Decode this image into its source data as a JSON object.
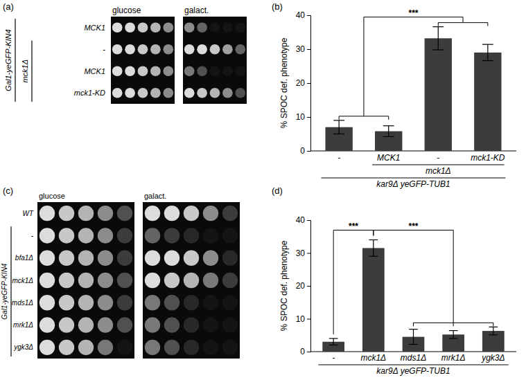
{
  "chart_data": [
    {
      "type": "spot-assay",
      "panel": "(a)",
      "rows": [
        "MCK1",
        "-",
        "MCK1",
        "mck1-KD"
      ],
      "row_groups": [
        {
          "label": "Gal1-yeGFP-KIN4",
          "span": [
            0,
            3
          ]
        },
        {
          "label": "mck1Δ",
          "span": [
            1,
            3
          ]
        }
      ],
      "columns": [
        {
          "label": "glucose",
          "growth": [
            [
              1,
              1,
              0.9,
              0.8,
              0.6
            ],
            [
              1,
              1,
              0.9,
              0.8,
              0.6
            ],
            [
              1,
              1,
              0.9,
              0.8,
              0.6
            ],
            [
              1,
              1,
              0.9,
              0.8,
              0.6
            ]
          ]
        },
        {
          "label": "galact.",
          "growth": [
            [
              0.6,
              0.4,
              0,
              0,
              0
            ],
            [
              1,
              1,
              0.9,
              0.7,
              0.4
            ],
            [
              0.5,
              0.3,
              0,
              0,
              0
            ],
            [
              1,
              0.9,
              0.8,
              0.6,
              0.3
            ]
          ]
        }
      ]
    },
    {
      "type": "bar",
      "panel": "(b)",
      "y_label": "% SPOC def. phenotype",
      "categories": [
        "-",
        "MCK1",
        "-",
        "mck1-KD"
      ],
      "values": [
        7,
        5.8,
        33.2,
        29
      ],
      "errors": [
        2,
        1.6,
        3.4,
        2.4
      ],
      "color": "#3c3c3c",
      "ylim": [
        0,
        40
      ],
      "yticks": [
        0,
        10,
        20,
        30,
        40
      ],
      "groups": [
        {
          "label": "mck1Δ",
          "span": [
            1,
            3
          ]
        }
      ],
      "x_label": "kar9Δ yeGFP-TUB1",
      "significance": [
        {
          "label": "***",
          "left": [
            0,
            1
          ],
          "right": [
            2,
            3
          ]
        }
      ]
    },
    {
      "type": "spot-assay",
      "panel": "(c)",
      "rows": [
        "WT",
        "-",
        "bfa1Δ",
        "mck1Δ",
        "mds1Δ",
        "mrk1Δ",
        "ygk3Δ"
      ],
      "row_groups": [
        {
          "label": "Gal1-yeGFP-KIN4",
          "span": [
            1,
            6
          ]
        }
      ],
      "columns": [
        {
          "label": "glucose",
          "growth": [
            [
              1,
              0.9,
              0.8,
              0.6,
              0.3
            ],
            [
              1,
              0.9,
              0.8,
              0.6,
              0.2
            ],
            [
              1,
              0.9,
              0.8,
              0.6,
              0.2
            ],
            [
              1,
              0.9,
              0.8,
              0.6,
              0.3
            ],
            [
              1,
              0.9,
              0.8,
              0.6,
              0.2
            ],
            [
              1,
              0.9,
              0.8,
              0.6,
              0.3
            ],
            [
              1,
              0.9,
              0.8,
              0.5,
              0
            ]
          ]
        },
        {
          "label": "galact.",
          "growth": [
            [
              1,
              1,
              0.9,
              0.6,
              0.2
            ],
            [
              0.4,
              0.2,
              0.1,
              0,
              0
            ],
            [
              1,
              1,
              0.9,
              0.6,
              0.1
            ],
            [
              1,
              0.9,
              0.8,
              0.5,
              0.2
            ],
            [
              0.5,
              0.3,
              0.1,
              0,
              0
            ],
            [
              0.5,
              0.3,
              0.1,
              0,
              0
            ],
            [
              0.5,
              0.3,
              0.1,
              0,
              0
            ]
          ]
        }
      ]
    },
    {
      "type": "bar",
      "panel": "(d)",
      "y_label": "% SPOC def. phenotype",
      "categories": [
        "-",
        "mck1Δ",
        "mds1Δ",
        "mrk1Δ",
        "ygk3Δ"
      ],
      "values": [
        3,
        31.5,
        4.5,
        5.2,
        6.3
      ],
      "errors": [
        1,
        2.5,
        2.3,
        1.2,
        1.2
      ],
      "color": "#3c3c3c",
      "ylim": [
        0,
        40
      ],
      "yticks": [
        0,
        10,
        20,
        30,
        40
      ],
      "x_label": "kar9Δ yeGFP-TUB1",
      "significance": [
        {
          "label": "***",
          "left": [
            0
          ],
          "right": [
            1
          ]
        },
        {
          "label": "***",
          "left": [
            1
          ],
          "right": [
            2,
            3,
            4
          ]
        }
      ]
    }
  ]
}
